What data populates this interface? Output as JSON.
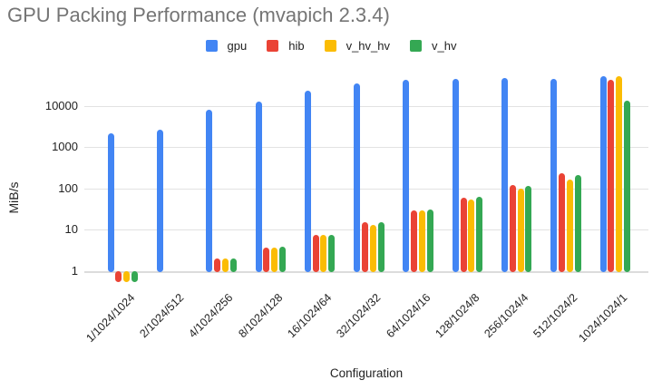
{
  "title": "GPU Packing Performance (mvapich 2.3.4)",
  "chart_data": {
    "type": "bar",
    "title": "GPU Packing Performance (mvapich 2.3.4)",
    "xlabel": "Configuration",
    "ylabel": "MiB/s",
    "yscale": "log",
    "ylim": [
      0.5,
      60000
    ],
    "yticks": [
      1,
      10,
      100,
      1000,
      10000
    ],
    "grid": true,
    "legend_position": "top",
    "categories": [
      "1/1024/1024",
      "2/1024/512",
      "4/1024/256",
      "8/1024/128",
      "16/1024/64",
      "32/1024/32",
      "64/1024/16",
      "128/1024/8",
      "256/1024/4",
      "512/1024/2",
      "1024/1024/1"
    ],
    "series": [
      {
        "name": "gpu",
        "color": "#4285F4",
        "values": [
          2150,
          2650,
          8000,
          12500,
          23000,
          35000,
          42000,
          45000,
          47000,
          45000,
          52000
        ]
      },
      {
        "name": "hib",
        "color": "#EA4335",
        "values": [
          0.55,
          null,
          2,
          3.8,
          7.5,
          15,
          30,
          60,
          120,
          230,
          43000
        ]
      },
      {
        "name": "v_hv_hv",
        "color": "#FBBC04",
        "values": [
          0.55,
          null,
          2,
          3.8,
          7.4,
          13.5,
          29,
          54,
          100,
          165,
          53000
        ]
      },
      {
        "name": "v_hv",
        "color": "#34A853",
        "values": [
          0.55,
          null,
          2,
          3.9,
          7.6,
          15,
          31,
          62,
          117,
          215,
          13000
        ]
      }
    ]
  }
}
